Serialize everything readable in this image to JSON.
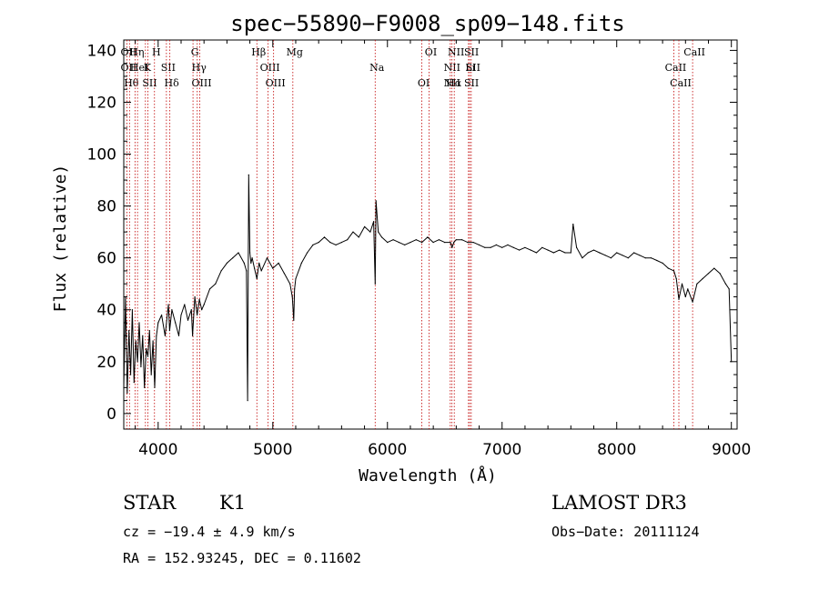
{
  "chart_data": {
    "type": "line",
    "title": "spec−55890−F9008_sp09−148.fits",
    "xlabel": "Wavelength (Å)",
    "ylabel": "Flux (relative)",
    "xlim": [
      3700,
      9050
    ],
    "ylim": [
      -6,
      144
    ],
    "xticks": [
      4000,
      5000,
      6000,
      7000,
      8000,
      9000
    ],
    "yticks": [
      0,
      20,
      40,
      60,
      80,
      100,
      120,
      140
    ],
    "grid": false,
    "series": [
      {
        "name": "flux",
        "color": "#000000",
        "x": [
          3700,
          3715,
          3730,
          3745,
          3760,
          3775,
          3790,
          3805,
          3820,
          3835,
          3850,
          3865,
          3880,
          3895,
          3910,
          3925,
          3940,
          3955,
          3970,
          3985,
          4000,
          4030,
          4060,
          4090,
          4100,
          4120,
          4150,
          4180,
          4200,
          4230,
          4260,
          4290,
          4300,
          4320,
          4340,
          4360,
          4380,
          4400,
          4450,
          4500,
          4550,
          4600,
          4650,
          4700,
          4750,
          4770,
          4780,
          4790,
          4800,
          4810,
          4820,
          4840,
          4861,
          4880,
          4900,
          4950,
          5000,
          5050,
          5100,
          5150,
          5170,
          5183,
          5190,
          5200,
          5250,
          5300,
          5350,
          5400,
          5450,
          5500,
          5550,
          5600,
          5650,
          5700,
          5750,
          5800,
          5850,
          5880,
          5893,
          5900,
          5920,
          5950,
          6000,
          6050,
          6100,
          6150,
          6200,
          6250,
          6300,
          6350,
          6400,
          6450,
          6500,
          6550,
          6563,
          6580,
          6600,
          6650,
          6700,
          6750,
          6800,
          6850,
          6900,
          6950,
          7000,
          7050,
          7100,
          7150,
          7200,
          7250,
          7300,
          7350,
          7400,
          7450,
          7500,
          7550,
          7600,
          7620,
          7650,
          7700,
          7750,
          7800,
          7850,
          7900,
          7950,
          8000,
          8050,
          8100,
          8150,
          8200,
          8250,
          8300,
          8350,
          8400,
          8450,
          8498,
          8520,
          8542,
          8570,
          8600,
          8620,
          8662,
          8700,
          8750,
          8800,
          8850,
          8900,
          8950,
          8980,
          9000
        ],
        "values": [
          10,
          45,
          8,
          32,
          15,
          40,
          12,
          28,
          20,
          35,
          18,
          30,
          10,
          25,
          22,
          32,
          15,
          28,
          10,
          30,
          35,
          38,
          30,
          42,
          32,
          40,
          35,
          30,
          38,
          42,
          36,
          40,
          30,
          45,
          38,
          44,
          40,
          42,
          48,
          50,
          55,
          58,
          60,
          62,
          58,
          55,
          5,
          92,
          62,
          58,
          60,
          56,
          52,
          58,
          55,
          60,
          56,
          58,
          54,
          50,
          45,
          36,
          48,
          52,
          58,
          62,
          65,
          66,
          68,
          66,
          65,
          66,
          67,
          70,
          68,
          72,
          70,
          74,
          50,
          82,
          70,
          68,
          66,
          67,
          66,
          65,
          66,
          67,
          66,
          68,
          66,
          67,
          66,
          66,
          64,
          66,
          67,
          67,
          66,
          66,
          65,
          64,
          64,
          65,
          64,
          65,
          64,
          63,
          64,
          63,
          62,
          64,
          63,
          62,
          63,
          62,
          62,
          73,
          64,
          60,
          62,
          63,
          62,
          61,
          60,
          62,
          61,
          60,
          62,
          61,
          60,
          60,
          59,
          58,
          56,
          55,
          52,
          44,
          50,
          45,
          48,
          43,
          50,
          52,
          54,
          56,
          54,
          50,
          48,
          20
        ]
      }
    ],
    "line_markers": [
      {
        "wl": 3727,
        "labels": [
          "OII",
          "OII"
        ]
      },
      {
        "wl": 3750,
        "labels": [
          "Hθ"
        ]
      },
      {
        "wl": 3798,
        "labels": [
          "Hη"
        ]
      },
      {
        "wl": 3820,
        "labels": [
          "HeI"
        ]
      },
      {
        "wl": 3889,
        "labels": [
          "K"
        ]
      },
      {
        "wl": 3910,
        "labels": [
          "SII"
        ]
      },
      {
        "wl": 3968,
        "labels": [
          "H"
        ]
      },
      {
        "wl": 4072,
        "labels": [
          "SII"
        ]
      },
      {
        "wl": 4102,
        "labels": [
          "Hδ"
        ]
      },
      {
        "wl": 4304,
        "labels": [
          "G"
        ]
      },
      {
        "wl": 4341,
        "labels": [
          "Hγ"
        ]
      },
      {
        "wl": 4363,
        "labels": [
          "OIII"
        ]
      },
      {
        "wl": 4861,
        "labels": [
          "Hβ"
        ]
      },
      {
        "wl": 4959,
        "labels": [
          "OIII"
        ]
      },
      {
        "wl": 5007,
        "labels": [
          "OIII"
        ]
      },
      {
        "wl": 5175,
        "labels": [
          "Mg"
        ]
      },
      {
        "wl": 5893,
        "labels": [
          "Na"
        ]
      },
      {
        "wl": 6300,
        "labels": [
          "OI"
        ]
      },
      {
        "wl": 6363,
        "labels": [
          "OI"
        ]
      },
      {
        "wl": 6548,
        "labels": [
          "NII",
          "NII"
        ]
      },
      {
        "wl": 6563,
        "labels": [
          "Hα"
        ]
      },
      {
        "wl": 6583,
        "labels": [
          "NII"
        ]
      },
      {
        "wl": 6707,
        "labels": [
          "Li"
        ]
      },
      {
        "wl": 6717,
        "labels": [
          "SII",
          "SII"
        ]
      },
      {
        "wl": 6731,
        "labels": [
          "SII"
        ]
      },
      {
        "wl": 8498,
        "labels": [
          "CaII"
        ]
      },
      {
        "wl": 8542,
        "labels": [
          "CaII"
        ]
      },
      {
        "wl": 8662,
        "labels": [
          "CaII"
        ]
      }
    ]
  },
  "info": {
    "class": "STAR",
    "subclass": "K1",
    "cz": "cz = −19.4 ± 4.9 km/s",
    "coords": "RA = 152.93245, DEC =    0.11602",
    "survey": "LAMOST DR3",
    "obs_date": "Obs−Date: 20111124"
  }
}
